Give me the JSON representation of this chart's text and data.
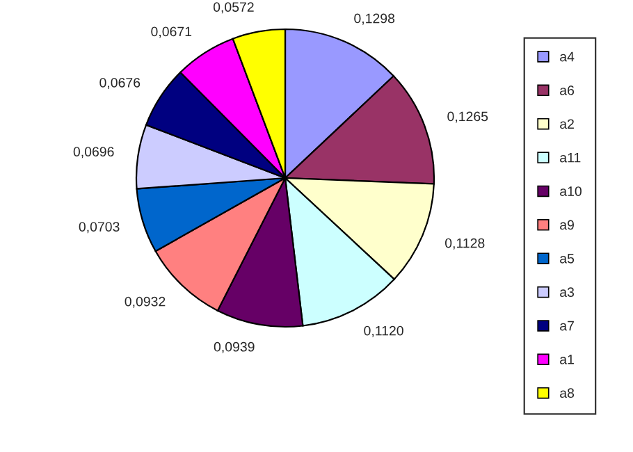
{
  "chart_data": {
    "type": "pie",
    "categories": [
      "a4",
      "a6",
      "a2",
      "a11",
      "a10",
      "a9",
      "a5",
      "a3",
      "a7",
      "a1",
      "a8"
    ],
    "values": [
      0.1298,
      0.1265,
      0.1128,
      0.112,
      0.0939,
      0.0932,
      0.0703,
      0.0696,
      0.0676,
      0.0671,
      0.0572
    ],
    "value_labels": [
      "0,1298",
      "0,1265",
      "0,1128",
      "0,1120",
      "0,0939",
      "0,0932",
      "0,0703",
      "0,0696",
      "0,0676",
      "0,0671",
      "0,0572"
    ],
    "colors": [
      "#9999ff",
      "#993366",
      "#ffffcc",
      "#ccffff",
      "#660066",
      "#ff8080",
      "#0066cc",
      "#ccccff",
      "#000080",
      "#ff00ff",
      "#ffff00"
    ],
    "legend": "right"
  }
}
